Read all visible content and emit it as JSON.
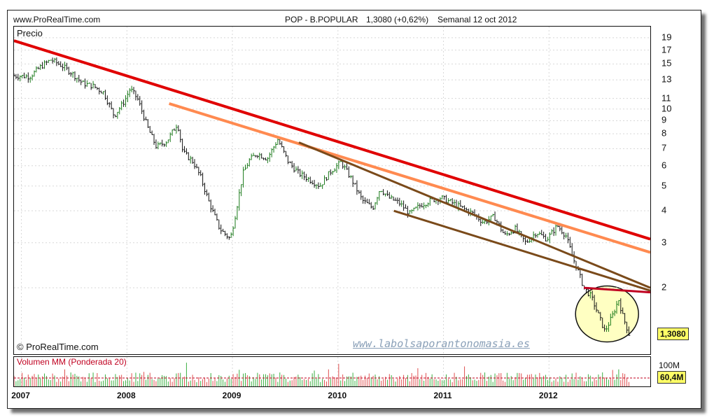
{
  "header": {
    "site": "www.ProRealTime.com",
    "ticker": "POP - B.POPULAR",
    "quote": "1,3080 (+0,62%)",
    "period": "Semanal  12 oct 2012"
  },
  "labels": {
    "price": "Precio",
    "copyright": "© ProRealTime.com",
    "watermark": "www.labolsaporantonomasia.es",
    "volume": "Volumen MM (Ponderada 20)",
    "last_price": "1,3080",
    "vol_scale": "100M",
    "vol_last": "60,4M"
  },
  "colors": {
    "up": "#1a7a1a",
    "down": "#111111",
    "trend_red": "#e00000",
    "trend_orange": "#ff8a50",
    "channel_brown": "#7a4a1a",
    "circle_fill": "#ffff99",
    "neckline": "#c00020",
    "watermark": "#8aa0b8",
    "vol_up": "#3cb043",
    "vol_down": "#e05050"
  },
  "chart_data": {
    "type": "line",
    "scale": "log",
    "title": "POP - B.POPULAR",
    "xlabel": "",
    "ylabel": "Precio",
    "x_ticks": [
      "2007",
      "2008",
      "2009",
      "2010",
      "2011",
      "2012"
    ],
    "y_ticks": [
      "19",
      "17",
      "15",
      "13",
      "11",
      "10",
      "9",
      "8",
      "7",
      "6",
      "5",
      "4",
      "3",
      "2"
    ],
    "y_tick_values": [
      19,
      17,
      15,
      13,
      11,
      10,
      9,
      8,
      7,
      6,
      5,
      4,
      3,
      2
    ],
    "ylim": [
      1.1,
      21
    ],
    "xlim": [
      2006.95,
      2012.98
    ],
    "last_value": 1.308,
    "series": [
      {
        "x": [
          2006.95,
          2007.1,
          2007.2,
          2007.3,
          2007.4,
          2007.5,
          2007.6,
          2007.7,
          2007.8,
          2007.9,
          2008.0,
          2008.05,
          2008.12,
          2008.22,
          2008.3,
          2008.4,
          2008.5,
          2008.55,
          2008.65,
          2008.72,
          2008.8,
          2008.9,
          2009.0,
          2009.05,
          2009.12,
          2009.18,
          2009.25,
          2009.35,
          2009.45,
          2009.55,
          2009.65,
          2009.75,
          2009.85,
          2009.95,
          2010.05,
          2010.15,
          2010.25,
          2010.35,
          2010.42,
          2010.5,
          2010.6,
          2010.7,
          2010.8,
          2010.9,
          2011.0,
          2011.1,
          2011.2,
          2011.3,
          2011.4,
          2011.5,
          2011.6,
          2011.7,
          2011.8,
          2011.9,
          2012.0,
          2012.1,
          2012.18,
          2012.25,
          2012.3,
          2012.35,
          2012.42,
          2012.48,
          2012.55,
          2012.62,
          2012.68,
          2012.72,
          2012.78
        ],
        "y": [
          13.5,
          13.4,
          14.6,
          15.6,
          14.8,
          13.8,
          12.6,
          12.3,
          11.6,
          9.4,
          10.8,
          12.0,
          11.0,
          8.4,
          7.1,
          7.5,
          8.8,
          6.8,
          6.2,
          5.4,
          4.3,
          3.4,
          3.1,
          3.9,
          5.6,
          6.3,
          6.7,
          6.4,
          7.6,
          6.2,
          5.6,
          5.3,
          5.0,
          5.7,
          6.2,
          5.3,
          4.4,
          4.1,
          4.9,
          4.5,
          4.3,
          3.9,
          4.2,
          4.4,
          4.5,
          4.3,
          4.1,
          3.9,
          3.6,
          3.8,
          3.2,
          3.4,
          3.0,
          3.3,
          3.1,
          3.5,
          3.2,
          2.6,
          2.3,
          2.0,
          1.85,
          1.6,
          1.35,
          1.55,
          1.8,
          1.55,
          1.31
        ]
      }
    ],
    "volume": {
      "title": "Volumen MM (Ponderada 20)",
      "unit": "M",
      "scale_label": "100M",
      "last": 60.4
    }
  }
}
